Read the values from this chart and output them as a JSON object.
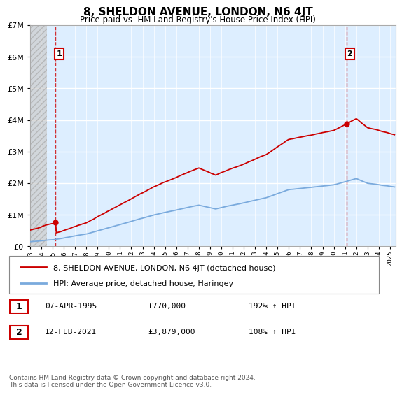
{
  "title": "8, SHELDON AVENUE, LONDON, N6 4JT",
  "subtitle": "Price paid vs. HM Land Registry's House Price Index (HPI)",
  "hpi_label": "HPI: Average price, detached house, Haringey",
  "property_label": "8, SHELDON AVENUE, LONDON, N6 4JT (detached house)",
  "annotation1_date": "07-APR-1995",
  "annotation1_price": "£770,000",
  "annotation1_hpi": "192% ↑ HPI",
  "annotation2_date": "12-FEB-2021",
  "annotation2_price": "£3,879,000",
  "annotation2_hpi": "108% ↑ HPI",
  "copyright_text": "Contains HM Land Registry data © Crown copyright and database right 2024.\nThis data is licensed under the Open Government Licence v3.0.",
  "sale1_x": 1995.27,
  "sale1_y": 770000,
  "sale2_x": 2021.12,
  "sale2_y": 3879000,
  "property_color": "#cc0000",
  "hpi_color": "#7aaadd",
  "ylim_max": 7000000,
  "xlim_min": 1993.0,
  "xlim_max": 2025.5,
  "yticks": [
    0,
    1000000,
    2000000,
    3000000,
    4000000,
    5000000,
    6000000,
    7000000
  ],
  "bg_color": "#ddeeff",
  "grid_color": "#ffffff",
  "hatch_bg_color": "#cccccc"
}
